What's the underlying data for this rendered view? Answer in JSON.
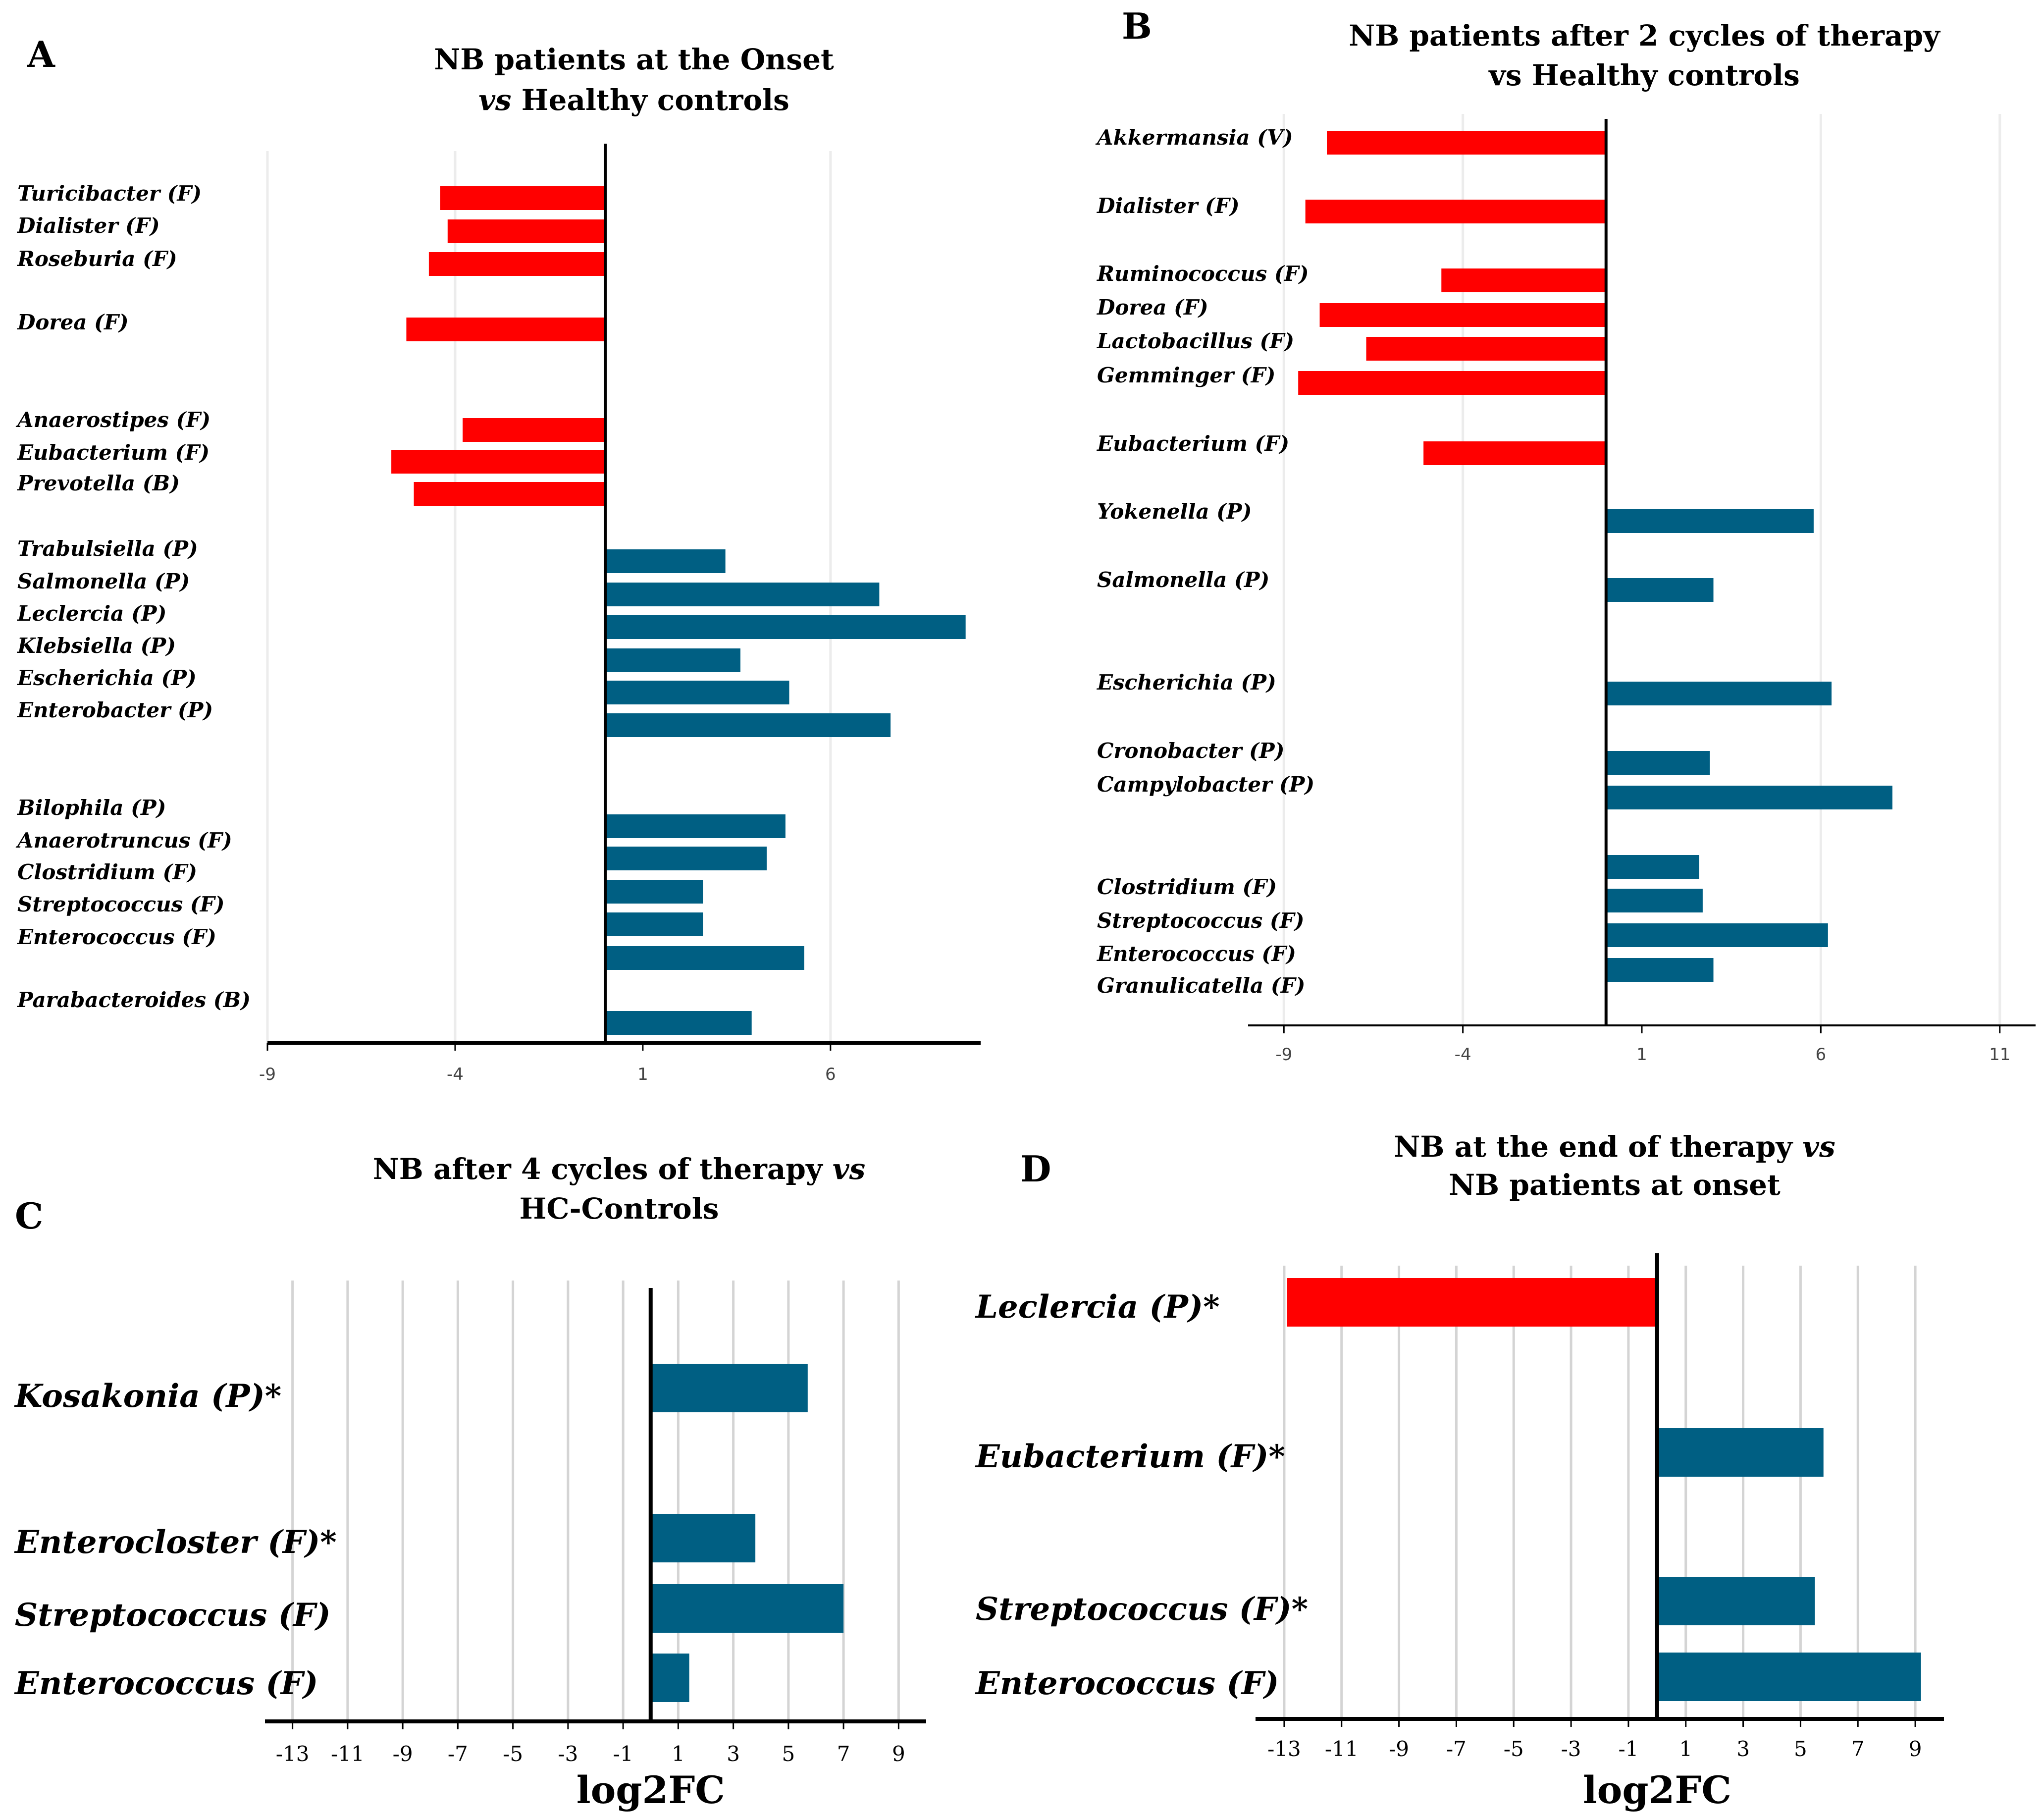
{
  "colors": {
    "negative": "#ff0000",
    "positive": "#005f83",
    "grid": "#d9d9d9",
    "axis": "#000000"
  },
  "chart_data": [
    {
      "panel": "A",
      "type": "bar",
      "orientation": "horizontal",
      "title_lines": [
        [
          {
            "text": "NB patients at the Onset",
            "italic": false
          }
        ],
        [
          {
            "text": "vs",
            "italic": true
          },
          {
            "text": " Healthy controls",
            "italic": false
          }
        ]
      ],
      "xlabel": "",
      "xlim": [
        -9,
        10
      ],
      "xticks": [
        -9,
        -4,
        1,
        6
      ],
      "ticks_shown": [
        "-9",
        "-4",
        "1",
        "6"
      ],
      "categories": [
        "Turicibacter (F)",
        "Dialister (F)",
        "Roseburia (F)",
        "Dorea (F)",
        "Anaerostipes (F)",
        "Eubacterium (F)",
        "Prevotella (B)",
        "Trabulsiella (P)",
        "Salmonella (P)",
        "Leclercia (P)",
        "Klebsiella (P)",
        "Escherichia (P)",
        "Enterobacter (P)",
        "Bilophila (P)",
        "Anaerotruncus (F)",
        "Clostridium (F)",
        "Streptococcus (F)",
        "Enterococcus (F)",
        "Parabacteroides (B)"
      ],
      "values": [
        -4.4,
        -4.2,
        -4.7,
        -5.3,
        -3.8,
        -5.7,
        -5.1,
        3.2,
        7.3,
        9.6,
        3.6,
        4.9,
        7.6,
        4.8,
        4.3,
        2.6,
        2.6,
        5.3,
        3.9
      ]
    },
    {
      "panel": "B",
      "type": "bar",
      "orientation": "horizontal",
      "title_lines": [
        [
          {
            "text": "NB patients after 2 cycles of therapy",
            "italic": false
          }
        ],
        [
          {
            "text": "vs Healthy controls",
            "italic": false
          }
        ]
      ],
      "xlabel": "",
      "xlim": [
        -10,
        12
      ],
      "xticks": [
        -9,
        -4,
        1,
        6,
        11
      ],
      "ticks_shown": [
        "-9",
        "-4",
        "1",
        "6",
        "11"
      ],
      "categories": [
        "Akkermansia (V)",
        "Dialister (F)",
        "Ruminococcus (F)",
        "Dorea (F)",
        "Lactobacillus (F)",
        "Gemminger (F)",
        "Eubacterium (F)",
        "Yokenella (P)",
        "Salmonella (P)",
        "Escherichia (P)",
        "Cronobacter (P)",
        "Campylobacter (P)",
        "Clostridium (F)",
        "Streptococcus (F)",
        "Enterococcus (F)",
        "Granulicatella (F)"
      ],
      "values": [
        -7.8,
        -8.4,
        -4.6,
        -8.0,
        -6.7,
        -8.6,
        -5.1,
        5.8,
        3.0,
        6.3,
        2.9,
        8.0,
        2.6,
        2.7,
        6.2,
        3.0
      ]
    },
    {
      "panel": "C",
      "type": "bar",
      "orientation": "horizontal",
      "title_lines": [
        [
          {
            "text": "NB after 4 cycles of therapy ",
            "italic": false
          },
          {
            "text": "vs",
            "italic": true
          }
        ],
        [
          {
            "text": "HC-Controls",
            "italic": false
          }
        ]
      ],
      "xlabel": "log2FC",
      "xlim": [
        -14,
        10
      ],
      "xticks": [
        -13,
        -11,
        -9,
        -7,
        -5,
        -3,
        -1,
        1,
        3,
        5,
        7,
        9
      ],
      "ticks_shown": [
        "-13",
        "-11",
        "-9",
        "-7",
        "-5",
        "-3",
        "-1",
        "1",
        "3",
        "5",
        "7",
        "9"
      ],
      "categories": [
        "Kosakonia (P)*",
        "Enterocloster (F)*",
        "Streptococcus (F)",
        "Enterococcus (F)"
      ],
      "values": [
        5.7,
        3.8,
        7.0,
        1.4
      ]
    },
    {
      "panel": "D",
      "type": "bar",
      "orientation": "horizontal",
      "title_lines": [
        [
          {
            "text": "NB at the end of therapy ",
            "italic": false
          },
          {
            "text": "vs",
            "italic": true
          }
        ],
        [
          {
            "text": "NB patients at onset",
            "italic": false
          }
        ]
      ],
      "xlabel": "log2FC",
      "xlim": [
        -14,
        10
      ],
      "xticks": [
        -13,
        -11,
        -9,
        -7,
        -5,
        -3,
        -1,
        1,
        3,
        5,
        7,
        9
      ],
      "ticks_shown": [
        "-13",
        "-11",
        "-9",
        "-7",
        "-5",
        "-3",
        "-1",
        "1",
        "3",
        "5",
        "7",
        "9"
      ],
      "categories": [
        "Leclercia (P)*",
        "Eubacterium (F)*",
        "Streptococcus (F)*",
        "Enterococcus (F)"
      ],
      "values": [
        -12.9,
        5.8,
        5.5,
        9.2
      ]
    }
  ]
}
